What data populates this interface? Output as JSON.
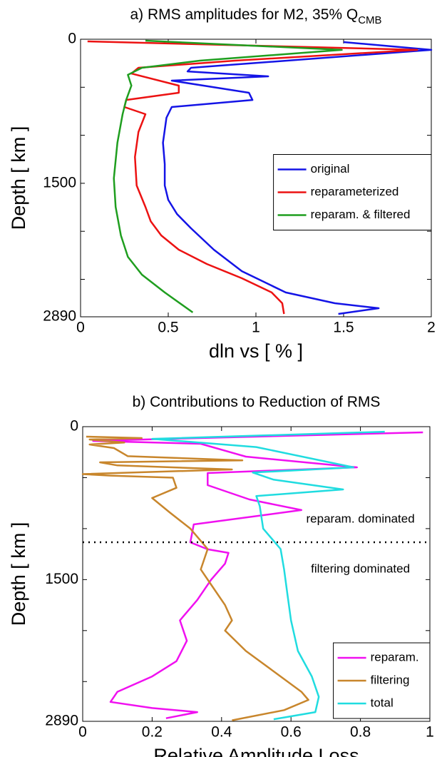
{
  "chart_data": [
    {
      "type": "line",
      "title": "a) RMS amplitudes for M2,  35% Q",
      "title_subscript": "CMB",
      "xlabel": "dln vs [ % ]",
      "ylabel": "Depth [ km ]",
      "xlim": [
        0,
        2
      ],
      "ylim": [
        0,
        2890
      ],
      "y_inverted": true,
      "xticks": [
        0,
        0.5,
        1,
        1.5,
        2
      ],
      "yticks": [
        0,
        1500,
        2890
      ],
      "yminorticks": [
        500,
        1000,
        2000,
        2500
      ],
      "legend": "right",
      "series": [
        {
          "name": "original",
          "color": "#1414e6",
          "values": [
            1.5,
            2.0,
            0.63,
            0.61,
            1.07,
            0.52,
            0.96,
            0.98,
            0.52,
            0.49,
            0.47,
            0.48,
            0.48,
            0.5,
            0.55,
            0.63,
            0.76,
            0.92,
            1.17,
            1.45,
            1.7,
            1.47
          ],
          "depth": [
            30,
            111,
            297,
            335,
            386,
            431,
            557,
            632,
            706,
            817,
            1077,
            1300,
            1523,
            1672,
            1820,
            1969,
            2192,
            2415,
            2637,
            2749,
            2801,
            2860
          ]
        },
        {
          "name": "reparameterized",
          "color": "#ec1212",
          "values": [
            0.04,
            1.92,
            0.88,
            0.33,
            0.29,
            0.56,
            0.56,
            0.26,
            0.25,
            0.37,
            0.33,
            0.31,
            0.32,
            0.37,
            0.4,
            0.46,
            0.56,
            0.72,
            0.92,
            1.09,
            1.15,
            1.16
          ],
          "depth": [
            22,
            111,
            223,
            297,
            357,
            483,
            557,
            632,
            706,
            780,
            966,
            1226,
            1523,
            1746,
            1895,
            2043,
            2192,
            2340,
            2489,
            2637,
            2749,
            2860
          ]
        },
        {
          "name": "reparam. & filtered",
          "color": "#1f9e1f",
          "values": [
            0.37,
            1.49,
            0.68,
            0.35,
            0.27,
            0.29,
            0.26,
            0.24,
            0.21,
            0.19,
            0.2,
            0.23,
            0.27,
            0.35,
            0.48,
            0.64
          ],
          "depth": [
            15,
            111,
            223,
            297,
            371,
            483,
            632,
            780,
            1077,
            1449,
            1746,
            2043,
            2266,
            2452,
            2637,
            2845
          ]
        }
      ]
    },
    {
      "type": "line",
      "title": "b) Contributions to Reduction of RMS",
      "xlabel": "Relative Amplitude Loss",
      "ylabel": "Depth [ km ]",
      "xlim": [
        0,
        1
      ],
      "ylim": [
        0,
        2890
      ],
      "y_inverted": true,
      "xticks": [
        0,
        0.2,
        0.4,
        0.6,
        0.8,
        1
      ],
      "yticks": [
        0,
        1500,
        2890
      ],
      "yminorticks": [
        500,
        1000,
        2000,
        2500
      ],
      "hline": 1134,
      "annotations": [
        "reparam. dominated",
        "filtering dominated"
      ],
      "legend": "lower right",
      "series": [
        {
          "name": "reparam.",
          "color": "#f010f0",
          "values": [
            0.98,
            0.25,
            0.03,
            0.34,
            0.47,
            0.79,
            0.36,
            0.36,
            0.48,
            0.63,
            0.32,
            0.31,
            0.36,
            0.42,
            0.41,
            0.37,
            0.33,
            0.28,
            0.3,
            0.27,
            0.2,
            0.1,
            0.08,
            0.2,
            0.33,
            0.24
          ],
          "depth": [
            56,
            119,
            140,
            168,
            294,
            399,
            455,
            574,
            714,
            818,
            959,
            1134,
            1203,
            1238,
            1343,
            1500,
            1700,
            1900,
            2100,
            2300,
            2450,
            2600,
            2700,
            2760,
            2800,
            2860
          ]
        },
        {
          "name": "filtering",
          "color": "#c8862c",
          "values": [
            0.01,
            0.17,
            0.02,
            0.12,
            0.02,
            0.09,
            0.13,
            0.46,
            0.05,
            0.1,
            0.43,
            0.0,
            0.08,
            0.26,
            0.27,
            0.2,
            0.25,
            0.31,
            0.36,
            0.34,
            0.37,
            0.41,
            0.43,
            0.41,
            0.47,
            0.55,
            0.63,
            0.65,
            0.58,
            0.43
          ],
          "depth": [
            98,
            112,
            126,
            155,
            175,
            210,
            290,
            330,
            350,
            380,
            420,
            465,
            480,
            500,
            600,
            700,
            840,
            1000,
            1200,
            1400,
            1550,
            1750,
            1900,
            2000,
            2200,
            2400,
            2600,
            2680,
            2780,
            2880
          ]
        },
        {
          "name": "total",
          "color": "#20dce0",
          "values": [
            0.87,
            0.2,
            0.5,
            0.78,
            0.49,
            0.55,
            0.75,
            0.5,
            0.51,
            0.52,
            0.57,
            0.58,
            0.59,
            0.6,
            0.62,
            0.66,
            0.68,
            0.67,
            0.55
          ],
          "depth": [
            50,
            120,
            200,
            399,
            450,
            520,
            616,
            680,
            780,
            1000,
            1200,
            1400,
            1650,
            1900,
            2200,
            2450,
            2650,
            2800,
            2870
          ]
        }
      ]
    }
  ]
}
